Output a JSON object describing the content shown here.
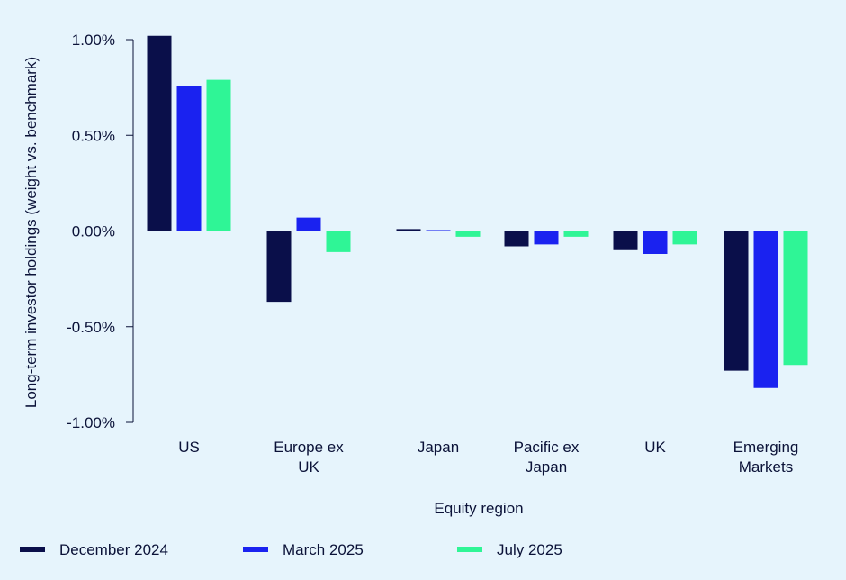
{
  "chart_data": {
    "type": "bar",
    "title": "",
    "xlabel": "Equity region",
    "ylabel": "Long-term investor holdings (weight vs. benchmark)",
    "ylim": [
      -1.0,
      1.0
    ],
    "yticks": [
      1.0,
      0.5,
      0.0,
      -0.5,
      -1.0
    ],
    "ytick_labels": [
      "1.00%",
      "0.50%",
      "0.00%",
      "-0.50%",
      "-1.00%"
    ],
    "grid": false,
    "legend_position": "bottom",
    "categories": [
      [
        "US"
      ],
      [
        "Europe ex",
        "UK"
      ],
      [
        "Japan"
      ],
      [
        "Pacific ex",
        "Japan"
      ],
      [
        "UK"
      ],
      [
        "Emerging",
        "Markets"
      ]
    ],
    "series": [
      {
        "name": "December 2024",
        "color": "#0a0f4a",
        "values": [
          1.02,
          -0.37,
          0.01,
          -0.08,
          -0.1,
          -0.73
        ]
      },
      {
        "name": "March 2025",
        "color": "#1a22f0",
        "values": [
          0.76,
          0.07,
          0.005,
          -0.07,
          -0.12,
          -0.82
        ]
      },
      {
        "name": "July 2025",
        "color": "#2ff596",
        "values": [
          0.79,
          -0.11,
          -0.03,
          -0.03,
          -0.07,
          -0.7
        ]
      }
    ]
  }
}
